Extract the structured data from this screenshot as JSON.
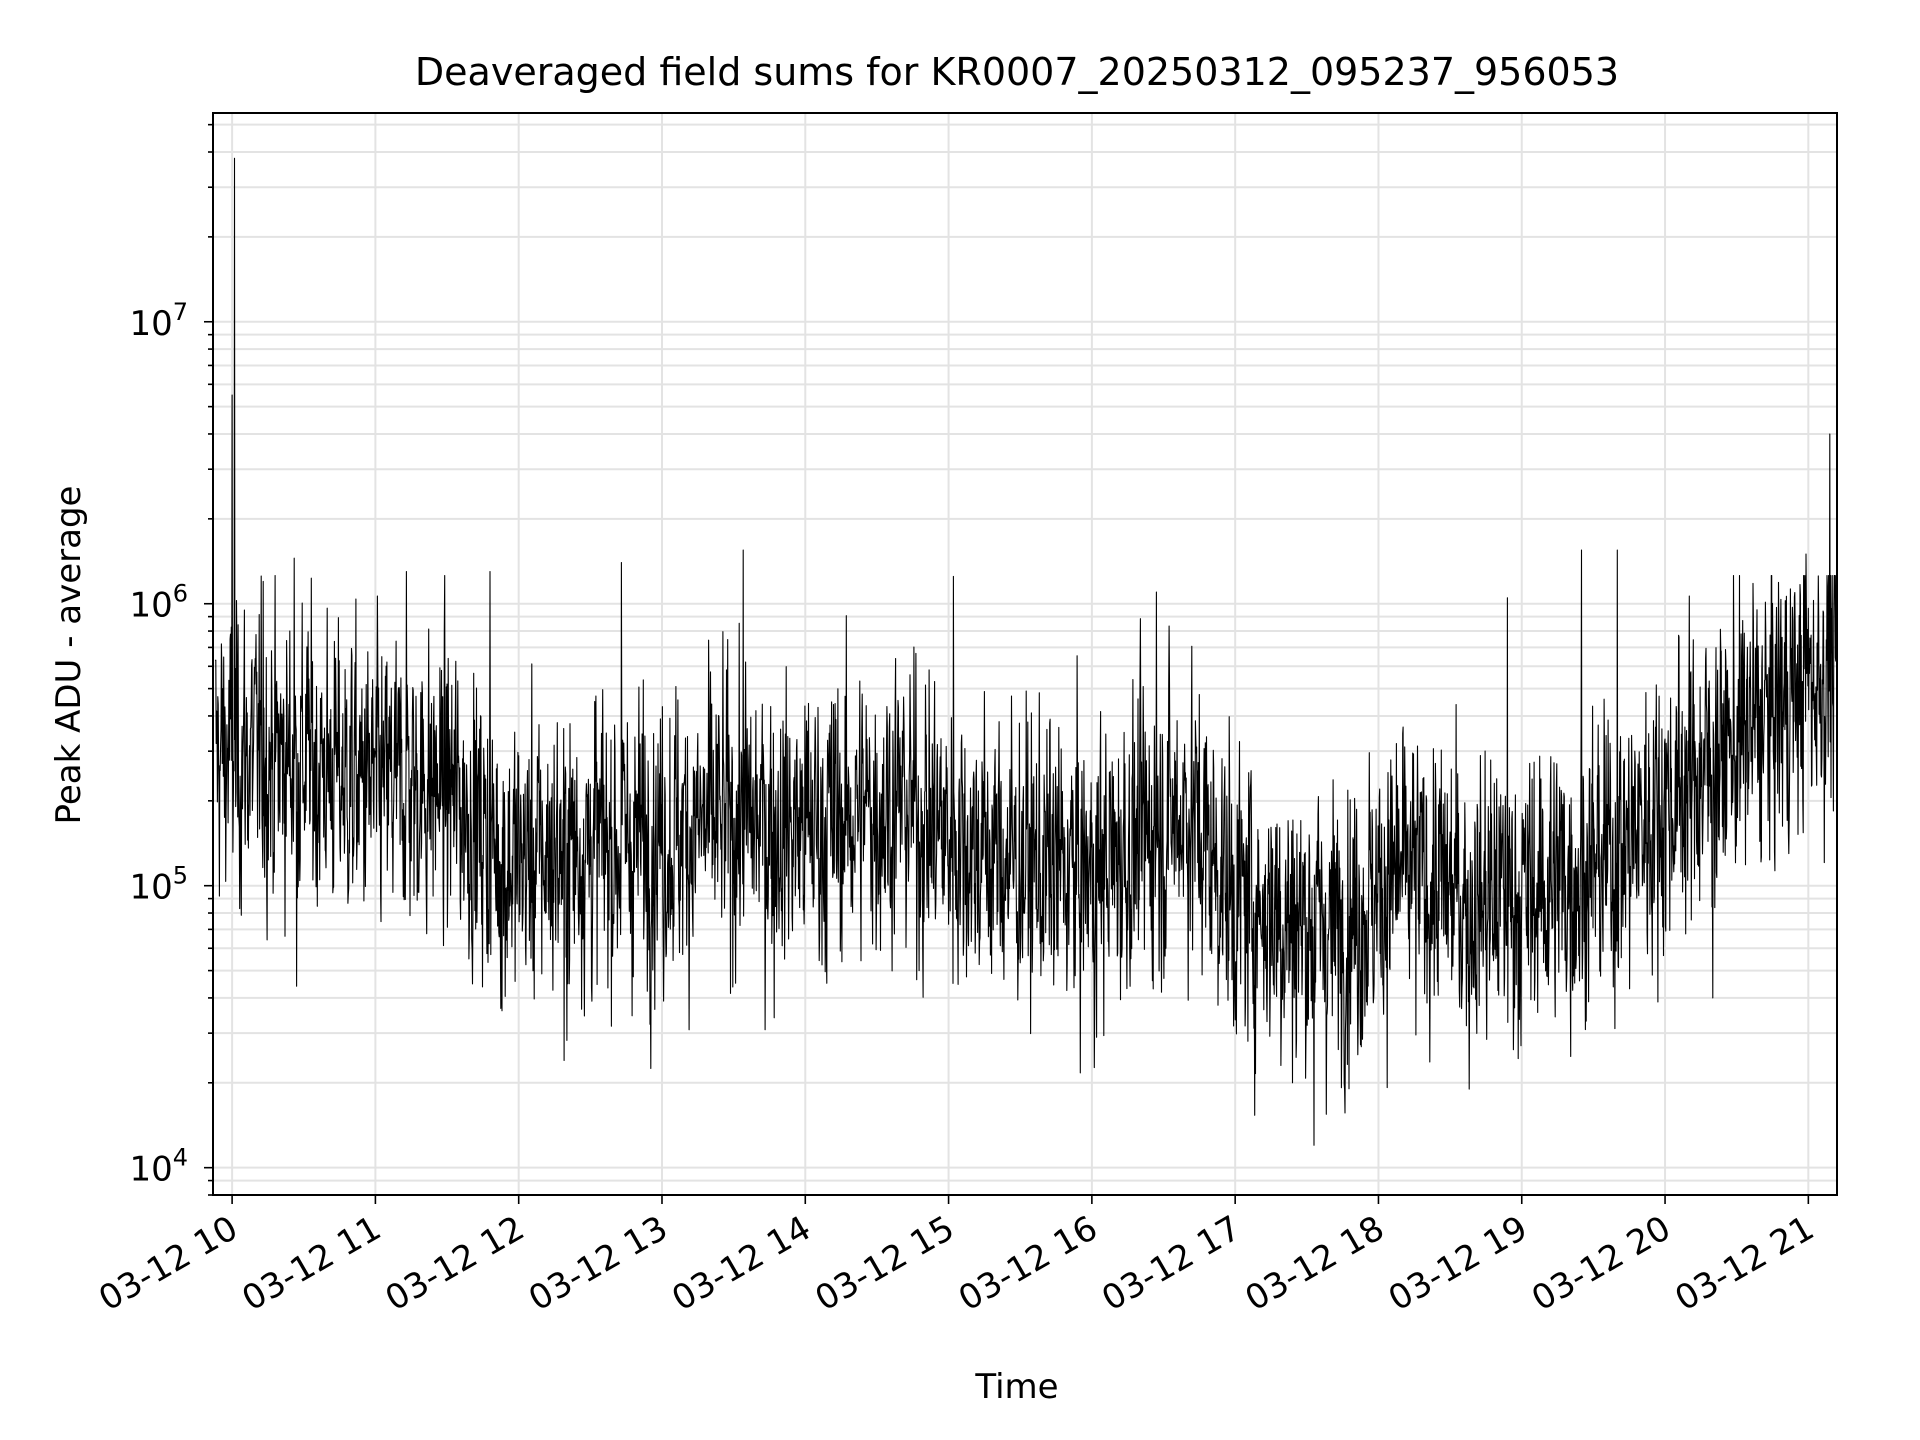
{
  "chart_data": {
    "type": "line",
    "title": "Deaveraged field sums for KR0007_20250312_095237_956053",
    "xlabel": "Time",
    "ylabel": "Peak ADU - average",
    "yscale": "log",
    "ylim": [
      8000,
      55000000
    ],
    "xlim": [
      "2025-03-12 09:52",
      "2025-03-12 21:12"
    ],
    "grid": true,
    "line_color": "#000000",
    "x_ticks": [
      {
        "value": "2025-03-12 10:00",
        "label": "03-12 10"
      },
      {
        "value": "2025-03-12 11:00",
        "label": "03-12 11"
      },
      {
        "value": "2025-03-12 12:00",
        "label": "03-12 12"
      },
      {
        "value": "2025-03-12 13:00",
        "label": "03-12 13"
      },
      {
        "value": "2025-03-12 14:00",
        "label": "03-12 14"
      },
      {
        "value": "2025-03-12 15:00",
        "label": "03-12 15"
      },
      {
        "value": "2025-03-12 16:00",
        "label": "03-12 16"
      },
      {
        "value": "2025-03-12 17:00",
        "label": "03-12 17"
      },
      {
        "value": "2025-03-12 18:00",
        "label": "03-12 18"
      },
      {
        "value": "2025-03-12 19:00",
        "label": "03-12 19"
      },
      {
        "value": "2025-03-12 20:00",
        "label": "03-12 20"
      },
      {
        "value": "2025-03-12 21:00",
        "label": "03-12 21"
      }
    ],
    "y_ticks": [
      {
        "value": 10000,
        "base": "10",
        "exp": "4"
      },
      {
        "value": 100000,
        "base": "10",
        "exp": "5"
      },
      {
        "value": 1000000,
        "base": "10",
        "exp": "6"
      },
      {
        "value": 10000000,
        "base": "10",
        "exp": "7"
      }
    ],
    "series": [
      {
        "x_start": "2025-03-12 09:53",
        "x_end": "2025-03-12 21:12",
        "sample_interval_seconds": 10,
        "trend": [
          {
            "x": "2025-03-12 09:53",
            "y": 300000
          },
          {
            "x": "2025-03-12 10:30",
            "y": 280000
          },
          {
            "x": "2025-03-12 11:00",
            "y": 220000
          },
          {
            "x": "2025-03-12 11:30",
            "y": 230000
          },
          {
            "x": "2025-03-12 11:55",
            "y": 120000
          },
          {
            "x": "2025-03-12 12:30",
            "y": 140000
          },
          {
            "x": "2025-03-12 13:00",
            "y": 150000
          },
          {
            "x": "2025-03-12 13:30",
            "y": 170000
          },
          {
            "x": "2025-03-12 14:00",
            "y": 160000
          },
          {
            "x": "2025-03-12 14:40",
            "y": 200000
          },
          {
            "x": "2025-03-12 15:00",
            "y": 150000
          },
          {
            "x": "2025-03-12 15:30",
            "y": 120000
          },
          {
            "x": "2025-03-12 16:00",
            "y": 110000
          },
          {
            "x": "2025-03-12 16:40",
            "y": 190000
          },
          {
            "x": "2025-03-12 17:00",
            "y": 90000
          },
          {
            "x": "2025-03-12 17:40",
            "y": 70000
          },
          {
            "x": "2025-03-12 18:10",
            "y": 110000
          },
          {
            "x": "2025-03-12 18:40",
            "y": 90000
          },
          {
            "x": "2025-03-12 19:00",
            "y": 90000
          },
          {
            "x": "2025-03-12 19:40",
            "y": 130000
          },
          {
            "x": "2025-03-12 20:00",
            "y": 200000
          },
          {
            "x": "2025-03-12 20:40",
            "y": 380000
          },
          {
            "x": "2025-03-12 21:12",
            "y": 650000
          }
        ],
        "spikes": [
          {
            "x": "2025-03-12 10:01",
            "y": 38000000
          },
          {
            "x": "2025-03-12 10:00",
            "y": 5500000
          },
          {
            "x": "2025-03-12 10:13",
            "y": 1200000
          },
          {
            "x": "2025-03-12 10:26",
            "y": 1450000
          },
          {
            "x": "2025-03-12 10:27",
            "y": 44000
          },
          {
            "x": "2025-03-12 11:13",
            "y": 1300000
          },
          {
            "x": "2025-03-12 11:48",
            "y": 1300000
          },
          {
            "x": "2025-03-12 11:53",
            "y": 36000
          },
          {
            "x": "2025-03-12 12:19",
            "y": 24000
          },
          {
            "x": "2025-03-12 12:43",
            "y": 1400000
          },
          {
            "x": "2025-03-12 13:34",
            "y": 1550000
          },
          {
            "x": "2025-03-12 13:47",
            "y": 34000
          },
          {
            "x": "2025-03-12 15:02",
            "y": 1250000
          },
          {
            "x": "2025-03-12 16:02",
            "y": 29000
          },
          {
            "x": "2025-03-12 16:27",
            "y": 1100000
          },
          {
            "x": "2025-03-12 17:24",
            "y": 20000
          },
          {
            "x": "2025-03-12 17:33",
            "y": 12000
          },
          {
            "x": "2025-03-12 18:38",
            "y": 19000
          },
          {
            "x": "2025-03-12 18:54",
            "y": 1050000
          },
          {
            "x": "2025-03-12 19:25",
            "y": 1550000
          },
          {
            "x": "2025-03-12 19:40",
            "y": 1550000
          },
          {
            "x": "2025-03-12 20:20",
            "y": 40000
          },
          {
            "x": "2025-03-12 20:59",
            "y": 1500000
          },
          {
            "x": "2025-03-12 21:09",
            "y": 4000000
          }
        ]
      }
    ]
  }
}
